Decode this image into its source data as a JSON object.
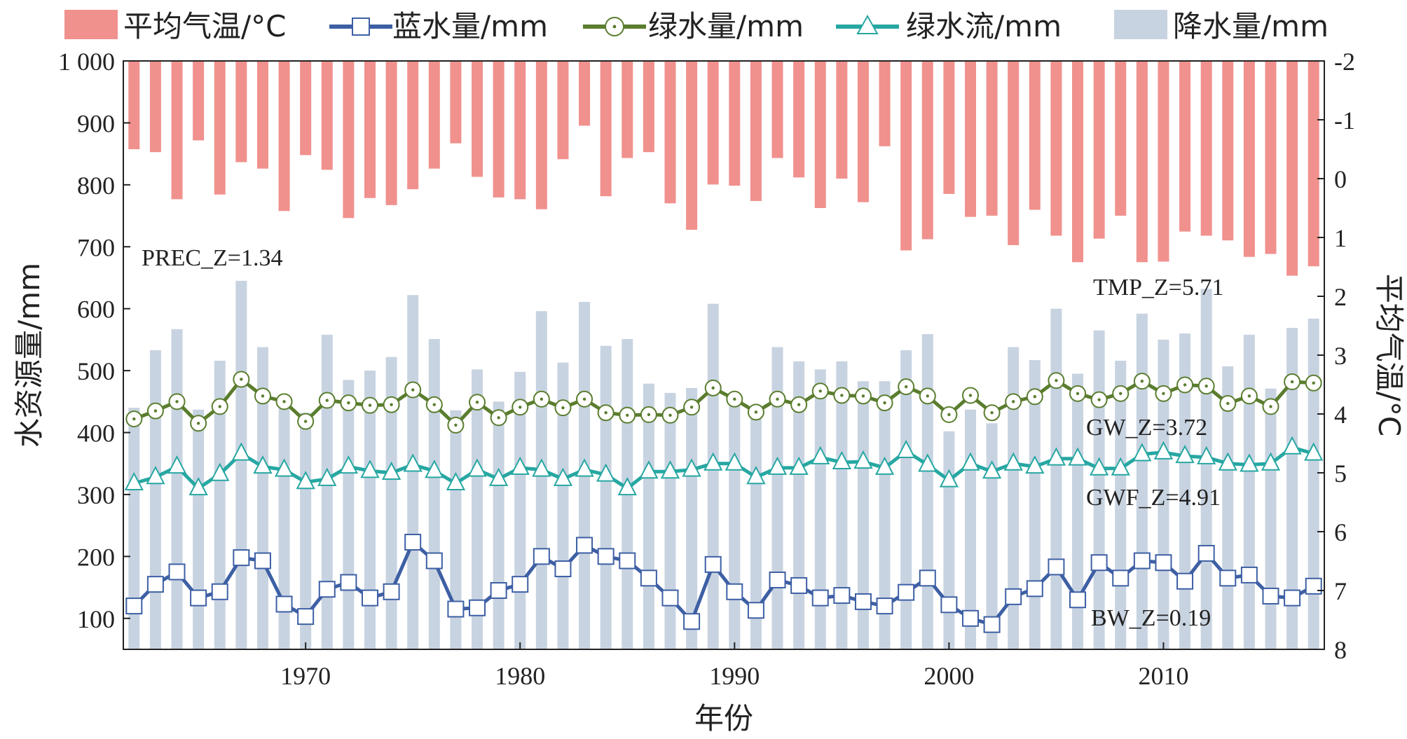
{
  "chart_data": {
    "type": "bar+line",
    "legend": {
      "placement": "top",
      "items": [
        {
          "key": "tmp",
          "label": "平均气温/°C",
          "kind": "bar"
        },
        {
          "key": "bw",
          "label": "蓝水量/mm",
          "kind": "line-square"
        },
        {
          "key": "gw",
          "label": "绿水量/mm",
          "kind": "line-circle"
        },
        {
          "key": "gwf",
          "label": "绿水流/mm",
          "kind": "line-triangle"
        },
        {
          "key": "prec",
          "label": "降水量/mm",
          "kind": "bar"
        }
      ]
    },
    "xlabel": "年份",
    "ylabel_left": "水资源量/mm",
    "ylabel_right": "平均气温/°C",
    "x_ticks": [
      "1970",
      "1980",
      "1990",
      "2000",
      "2010"
    ],
    "x_tick_values": [
      1970,
      1980,
      1990,
      2000,
      2010
    ],
    "left_ticks": [
      "100",
      "200",
      "300",
      "400",
      "500",
      "600",
      "700",
      "800",
      "900",
      "1 000"
    ],
    "left_tick_values": [
      100,
      200,
      300,
      400,
      500,
      600,
      700,
      800,
      900,
      1000
    ],
    "right_ticks": [
      "-2",
      "-1",
      "0",
      "1",
      "2",
      "3",
      "4",
      "5",
      "6",
      "7",
      "8"
    ],
    "right_tick_values": [
      -2,
      -1,
      0,
      1,
      2,
      3,
      4,
      5,
      6,
      7,
      8
    ],
    "xlim": [
      1961.5,
      2017.5
    ],
    "ylim_left": [
      50,
      1000
    ],
    "ylim_right_inverted": [
      -2,
      8
    ],
    "years": [
      1962,
      1963,
      1964,
      1965,
      1966,
      1967,
      1968,
      1969,
      1970,
      1971,
      1972,
      1973,
      1974,
      1975,
      1976,
      1977,
      1978,
      1979,
      1980,
      1981,
      1982,
      1983,
      1984,
      1985,
      1986,
      1987,
      1988,
      1989,
      1990,
      1991,
      1992,
      1993,
      1994,
      1995,
      1996,
      1997,
      1998,
      1999,
      2000,
      2001,
      2002,
      2003,
      2004,
      2005,
      2006,
      2007,
      2008,
      2009,
      2010,
      2011,
      2012,
      2013,
      2014,
      2015,
      2016,
      2017
    ],
    "series": [
      {
        "key": "prec",
        "name": "降水量/mm",
        "color": "#c8d3e1",
        "axis": "left",
        "values": [
          440,
          533,
          567,
          437,
          516,
          645,
          538,
          443,
          432,
          558,
          485,
          500,
          522,
          622,
          551,
          436,
          502,
          450,
          498,
          596,
          513,
          611,
          540,
          551,
          479,
          464,
          472,
          608,
          449,
          440,
          538,
          515,
          502,
          515,
          483,
          483,
          533,
          559,
          402,
          437,
          415,
          538,
          517,
          600,
          495,
          565,
          516,
          592,
          550,
          560,
          632,
          507,
          558,
          471,
          569,
          584
        ]
      },
      {
        "key": "tmp",
        "name": "平均气温/°C",
        "color": "#f0918e",
        "axis": "right",
        "values": [
          -0.5,
          -0.45,
          0.35,
          -0.65,
          0.27,
          -0.28,
          -0.17,
          0.55,
          -0.4,
          -0.15,
          0.67,
          0.33,
          0.45,
          0.18,
          -0.17,
          -0.6,
          -0.03,
          0.32,
          0.35,
          0.52,
          -0.33,
          -0.9,
          0.3,
          -0.35,
          -0.45,
          0.42,
          0.87,
          0.1,
          0.12,
          0.38,
          -0.35,
          -0.02,
          0.5,
          0.0,
          0.4,
          -0.55,
          1.22,
          1.03,
          0.26,
          0.65,
          0.63,
          1.13,
          0.53,
          0.97,
          1.42,
          1.02,
          0.63,
          1.42,
          1.41,
          0.9,
          0.97,
          1.05,
          1.33,
          1.28,
          1.65,
          1.49
        ]
      },
      {
        "key": "gw",
        "name": "绿水量/mm",
        "color": "#5a7d2e",
        "axis": "left",
        "values": [
          422,
          435,
          450,
          415,
          442,
          486,
          459,
          450,
          418,
          452,
          448,
          444,
          445,
          469,
          445,
          412,
          449,
          424,
          441,
          454,
          440,
          454,
          432,
          428,
          429,
          428,
          441,
          472,
          454,
          433,
          454,
          445,
          467,
          460,
          459,
          448,
          474,
          459,
          429,
          460,
          432,
          450,
          458,
          484,
          463,
          453,
          463,
          483,
          463,
          477,
          475,
          447,
          459,
          442,
          482,
          480
        ]
      },
      {
        "key": "gwf",
        "name": "绿水流/mm",
        "color": "#27a7a2",
        "axis": "left",
        "values": [
          318,
          328,
          345,
          310,
          333,
          366,
          345,
          340,
          320,
          325,
          345,
          338,
          335,
          348,
          338,
          318,
          340,
          325,
          343,
          340,
          325,
          340,
          332,
          310,
          337,
          337,
          340,
          350,
          350,
          328,
          343,
          343,
          360,
          352,
          353,
          343,
          370,
          348,
          323,
          350,
          337,
          350,
          345,
          358,
          358,
          342,
          342,
          365,
          368,
          362,
          360,
          350,
          348,
          350,
          376,
          366
        ]
      },
      {
        "key": "bw",
        "name": "蓝水量/mm",
        "color": "#3d5fa4",
        "axis": "left",
        "values": [
          120,
          155,
          175,
          133,
          143,
          198,
          193,
          123,
          103,
          147,
          158,
          133,
          143,
          223,
          193,
          115,
          117,
          145,
          155,
          200,
          180,
          218,
          200,
          193,
          165,
          133,
          95,
          187,
          143,
          113,
          162,
          153,
          133,
          137,
          127,
          120,
          142,
          165,
          122,
          100,
          90,
          135,
          148,
          183,
          130,
          190,
          165,
          193,
          190,
          160,
          205,
          165,
          170,
          136,
          133,
          152
        ]
      }
    ],
    "annotations": [
      {
        "text": "PREC_Z=1.34",
        "series": "prec"
      },
      {
        "text": "TMP_Z=5.71",
        "series": "tmp"
      },
      {
        "text": "GW_Z=3.72",
        "series": "gw"
      },
      {
        "text": "GWF_Z=4.91",
        "series": "gwf"
      },
      {
        "text": "BW_Z=0.19",
        "series": "bw"
      }
    ]
  }
}
